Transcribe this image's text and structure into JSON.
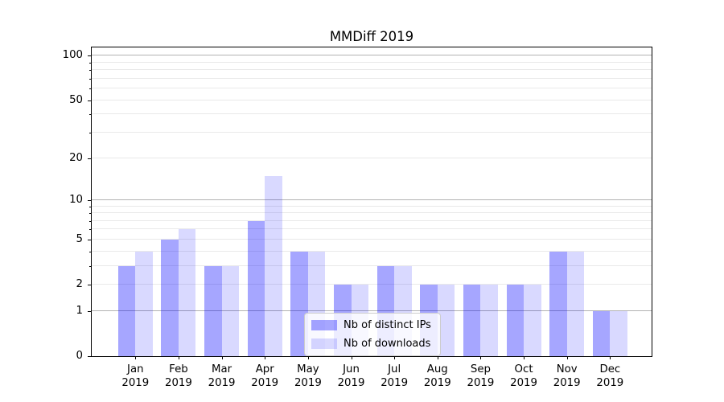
{
  "chart_data": {
    "type": "bar",
    "title": "MMDiff 2019",
    "categories": [
      "Jan 2019",
      "Feb 2019",
      "Mar 2019",
      "Apr 2019",
      "May 2019",
      "Jun 2019",
      "Jul 2019",
      "Aug 2019",
      "Sep 2019",
      "Oct 2019",
      "Nov 2019",
      "Dec 2019"
    ],
    "series": [
      {
        "name": "Nb of distinct IPs",
        "color": "rgba(0,0,255,0.35)",
        "values": [
          3,
          5,
          3,
          7,
          4,
          2,
          3,
          2,
          2,
          2,
          4,
          1
        ]
      },
      {
        "name": "Nb of downloads",
        "color": "rgba(0,0,255,0.15)",
        "values": [
          4,
          6,
          3,
          15,
          4,
          2,
          3,
          2,
          2,
          2,
          4,
          1
        ]
      }
    ],
    "y_axis": {
      "scale": "log1p",
      "ticks": [
        0,
        1,
        2,
        5,
        10,
        20,
        50,
        100
      ],
      "tick_labels": [
        "0",
        "1",
        "2",
        "5",
        "10",
        "20",
        "50",
        "100"
      ],
      "ylim": [
        0,
        116
      ]
    },
    "x_axis": {
      "label_lines_per_tick": 2
    },
    "grid": {
      "state": "on",
      "major": [
        1,
        10,
        100
      ],
      "minor": [
        2,
        3,
        4,
        5,
        6,
        7,
        8,
        9,
        20,
        30,
        40,
        50,
        60,
        70,
        80,
        90
      ],
      "major_color": "#b2b2b2",
      "minor_color": "#e9e9e9"
    },
    "legend": {
      "position": "lower center",
      "entries": [
        "Nb of distinct IPs",
        "Nb of downloads"
      ]
    }
  }
}
